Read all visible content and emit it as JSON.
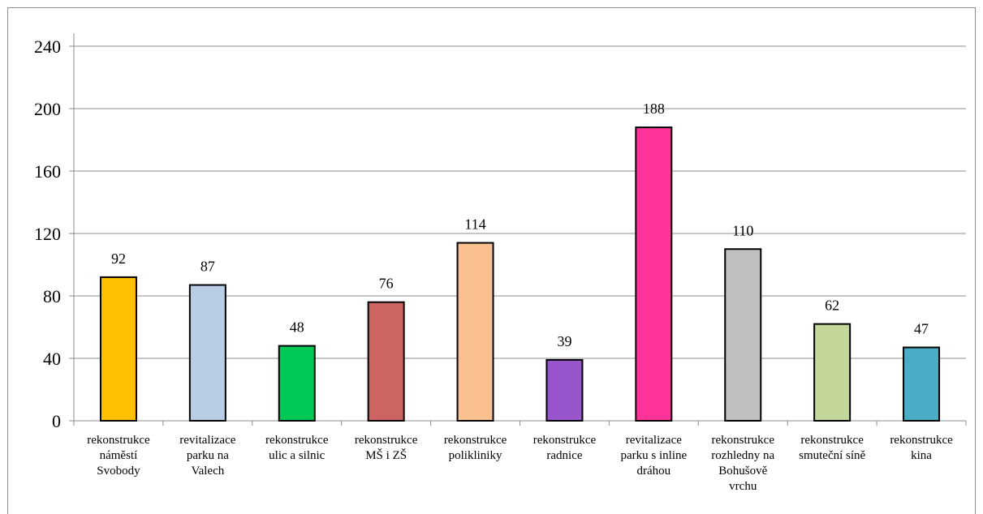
{
  "chart_data": {
    "type": "bar",
    "title": "",
    "xlabel": "",
    "ylabel": "",
    "ylim": [
      0,
      240
    ],
    "yticks": [
      0,
      40,
      80,
      120,
      160,
      200,
      240
    ],
    "grid": true,
    "legend": "none",
    "categories": [
      [
        "rekonstrukce",
        "náměstí",
        "Svobody"
      ],
      [
        "revitalizace",
        "parku na",
        "Valech"
      ],
      [
        "rekonstrukce",
        "ulic a silnic"
      ],
      [
        "rekonstrukce",
        "MŠ i ZŠ"
      ],
      [
        "rekonstrukce",
        "polikliniky"
      ],
      [
        "rekonstrukce",
        "radnice"
      ],
      [
        "revitalizace",
        "parku s inline",
        "dráhou"
      ],
      [
        "rekonstrukce",
        "rozhledny na",
        "Bohušově",
        "vrchu"
      ],
      [
        "rekonstrukce",
        "smuteční síně"
      ],
      [
        "rekonstrukce",
        "kina"
      ]
    ],
    "values": [
      92,
      87,
      48,
      76,
      114,
      39,
      188,
      110,
      62,
      47
    ],
    "colors": [
      "#FFC000",
      "#B9CDE5",
      "#00C957",
      "#CC6461",
      "#FAC090",
      "#9955CC",
      "#FF3399",
      "#BFBFBF",
      "#C4D79B",
      "#4BACC6"
    ],
    "gridline_color": "#8c8c8c",
    "bar_outline_color": "#000000"
  }
}
